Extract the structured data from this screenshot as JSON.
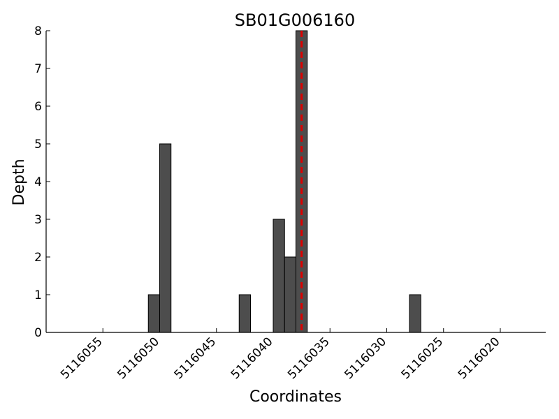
{
  "chart_data": {
    "type": "bar",
    "title": "SB01G006160",
    "xlabel": "Coordinates",
    "ylabel": "Depth",
    "x_axis_reversed": true,
    "xlim": [
      5116060,
      5116016
    ],
    "ylim": [
      0,
      8
    ],
    "xticks": [
      5116055,
      5116050,
      5116045,
      5116040,
      5116035,
      5116030,
      5116025,
      5116020
    ],
    "yticks": [
      0,
      1,
      2,
      3,
      4,
      5,
      6,
      7,
      8
    ],
    "bar_width": 1,
    "bars": [
      {
        "x": 5116051,
        "value": 1
      },
      {
        "x": 5116050,
        "value": 5
      },
      {
        "x": 5116043,
        "value": 1
      },
      {
        "x": 5116040,
        "value": 3
      },
      {
        "x": 5116039,
        "value": 2
      },
      {
        "x": 5116038,
        "value": 8
      },
      {
        "x": 5116028,
        "value": 1
      }
    ],
    "reference_line": {
      "x": 5116037.5,
      "style": "dashed",
      "color": "#dd0000"
    },
    "bar_color": "#4d4d4d",
    "grid": false,
    "legend": "none"
  }
}
